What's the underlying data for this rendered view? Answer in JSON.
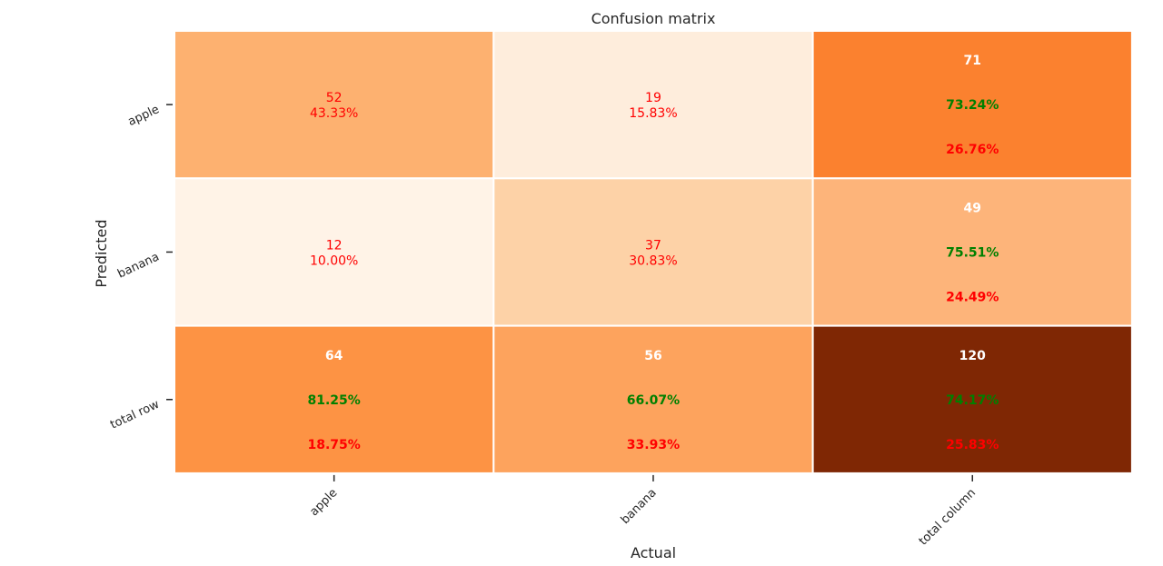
{
  "chart_data": {
    "type": "heatmap",
    "title": "Confusion matrix",
    "xlabel": "Actual",
    "ylabel": "Predicted",
    "x_tick_labels": [
      "apple",
      "banana",
      "total column"
    ],
    "y_tick_labels": [
      "apple",
      "banana",
      "total row"
    ],
    "colormap": "Oranges",
    "colors": {
      "grid_line": "#ffffff",
      "text_red": "#ff0000",
      "text_green": "#008000",
      "text_white": "#ffffff",
      "tick": "#262626"
    },
    "cells": [
      [
        {
          "kind": "value",
          "fill": "#fdb170",
          "lines": [
            {
              "text": "52",
              "color": "red"
            },
            {
              "text": "43.33%",
              "color": "red"
            }
          ]
        },
        {
          "kind": "value",
          "fill": "#feeddc",
          "lines": [
            {
              "text": "19",
              "color": "red"
            },
            {
              "text": "15.83%",
              "color": "red"
            }
          ]
        },
        {
          "kind": "total",
          "fill": "#fb812f",
          "lines": [
            {
              "text": "71",
              "color": "white"
            },
            {
              "text": "73.24%",
              "color": "green"
            },
            {
              "text": "26.76%",
              "color": "red"
            }
          ]
        }
      ],
      [
        {
          "kind": "value",
          "fill": "#fff3e7",
          "lines": [
            {
              "text": "12",
              "color": "red"
            },
            {
              "text": "10.00%",
              "color": "red"
            }
          ]
        },
        {
          "kind": "value",
          "fill": "#fdd2a7",
          "lines": [
            {
              "text": "37",
              "color": "red"
            },
            {
              "text": "30.83%",
              "color": "red"
            }
          ]
        },
        {
          "kind": "total",
          "fill": "#fdb47a",
          "lines": [
            {
              "text": "49",
              "color": "white"
            },
            {
              "text": "75.51%",
              "color": "green"
            },
            {
              "text": "24.49%",
              "color": "red"
            }
          ]
        }
      ],
      [
        {
          "kind": "total",
          "fill": "#fd9344",
          "lines": [
            {
              "text": "64",
              "color": "white"
            },
            {
              "text": "81.25%",
              "color": "green"
            },
            {
              "text": "18.75%",
              "color": "red"
            }
          ]
        },
        {
          "kind": "total",
          "fill": "#fda35d",
          "lines": [
            {
              "text": "56",
              "color": "white"
            },
            {
              "text": "66.07%",
              "color": "green"
            },
            {
              "text": "33.93%",
              "color": "red"
            }
          ]
        },
        {
          "kind": "total",
          "fill": "#7f2704",
          "lines": [
            {
              "text": "120",
              "color": "white"
            },
            {
              "text": "74.17%",
              "color": "green"
            },
            {
              "text": "25.83%",
              "color": "red"
            }
          ]
        }
      ]
    ],
    "counts": [
      [
        52,
        19,
        71
      ],
      [
        12,
        37,
        49
      ],
      [
        64,
        56,
        120
      ]
    ]
  }
}
